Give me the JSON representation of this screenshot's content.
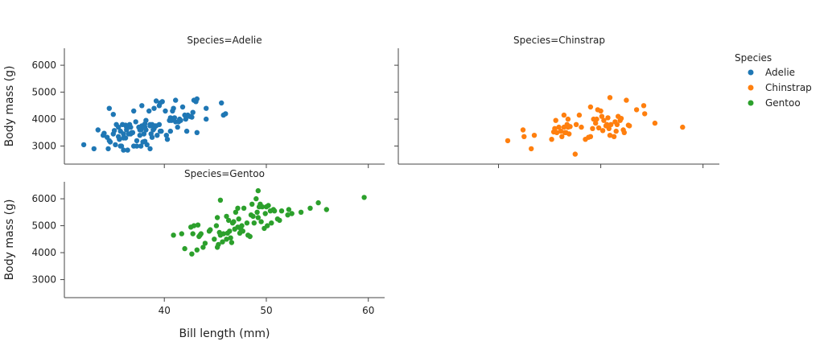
{
  "chart_data": {
    "type": "scatter",
    "xlabel": "Bill length (mm)",
    "ylabel": "Body mass (g)",
    "xlim": [
      30.2,
      61.6
    ],
    "ylim": [
      2330,
      6630
    ],
    "xticks": [
      40,
      50,
      60
    ],
    "yticks": [
      3000,
      4000,
      5000,
      6000
    ],
    "legend": {
      "title": "Species",
      "placement": "right"
    },
    "series": [
      {
        "name": "Adelie",
        "panel_title": "Species=Adelie",
        "color": "#1f77b4",
        "points": [
          [
            32.1,
            3050
          ],
          [
            33.1,
            2900
          ],
          [
            33.5,
            3600
          ],
          [
            34.0,
            3400
          ],
          [
            34.1,
            3475
          ],
          [
            34.4,
            3325
          ],
          [
            34.5,
            2900
          ],
          [
            34.6,
            3200
          ],
          [
            34.6,
            4400
          ],
          [
            34.7,
            3150
          ],
          [
            35.0,
            3450
          ],
          [
            35.0,
            4175
          ],
          [
            35.1,
            3575
          ],
          [
            35.2,
            3050
          ],
          [
            35.3,
            3800
          ],
          [
            35.5,
            3700
          ],
          [
            35.5,
            3350
          ],
          [
            35.6,
            3250
          ],
          [
            35.7,
            3000
          ],
          [
            35.7,
            3550
          ],
          [
            35.8,
            3000
          ],
          [
            35.9,
            3800
          ],
          [
            36.0,
            3450
          ],
          [
            36.0,
            2850
          ],
          [
            36.0,
            3300
          ],
          [
            36.2,
            3775
          ],
          [
            36.2,
            3300
          ],
          [
            36.3,
            3700
          ],
          [
            36.3,
            3600
          ],
          [
            36.4,
            2850
          ],
          [
            36.5,
            3450
          ],
          [
            36.6,
            3800
          ],
          [
            36.7,
            3450
          ],
          [
            36.7,
            3700
          ],
          [
            36.8,
            3500
          ],
          [
            36.9,
            3500
          ],
          [
            37.0,
            3000
          ],
          [
            37.0,
            4300
          ],
          [
            37.2,
            3900
          ],
          [
            37.3,
            3200
          ],
          [
            37.3,
            3000
          ],
          [
            37.5,
            3700
          ],
          [
            37.6,
            3400
          ],
          [
            37.6,
            3600
          ],
          [
            37.7,
            3600
          ],
          [
            37.7,
            3000
          ],
          [
            37.8,
            3700
          ],
          [
            37.8,
            3750
          ],
          [
            37.8,
            4500
          ],
          [
            37.9,
            3150
          ],
          [
            38.0,
            3450
          ],
          [
            38.1,
            3825
          ],
          [
            38.1,
            3175
          ],
          [
            38.1,
            3700
          ],
          [
            38.2,
            3950
          ],
          [
            38.2,
            3600
          ],
          [
            38.3,
            3050
          ],
          [
            38.5,
            4300
          ],
          [
            38.6,
            3800
          ],
          [
            38.6,
            2900
          ],
          [
            38.6,
            3750
          ],
          [
            38.7,
            3450
          ],
          [
            38.8,
            3800
          ],
          [
            38.8,
            3325
          ],
          [
            38.9,
            3600
          ],
          [
            39.0,
            3650
          ],
          [
            39.0,
            4400
          ],
          [
            39.1,
            3750
          ],
          [
            39.2,
            4675
          ],
          [
            39.2,
            3750
          ],
          [
            39.3,
            3400
          ],
          [
            39.5,
            4500
          ],
          [
            39.5,
            3800
          ],
          [
            39.6,
            4600
          ],
          [
            39.6,
            3550
          ],
          [
            39.7,
            3550
          ],
          [
            39.8,
            4650
          ],
          [
            40.1,
            4300
          ],
          [
            40.2,
            3400
          ],
          [
            40.3,
            3250
          ],
          [
            40.5,
            3950
          ],
          [
            40.6,
            3550
          ],
          [
            40.6,
            4050
          ],
          [
            40.7,
            3950
          ],
          [
            40.8,
            4300
          ],
          [
            40.9,
            4400
          ],
          [
            41.0,
            4050
          ],
          [
            41.1,
            4700
          ],
          [
            41.1,
            3900
          ],
          [
            41.3,
            3700
          ],
          [
            41.4,
            3900
          ],
          [
            41.5,
            4000
          ],
          [
            41.6,
            3950
          ],
          [
            41.8,
            4450
          ],
          [
            42.0,
            4150
          ],
          [
            42.1,
            4000
          ],
          [
            42.2,
            3550
          ],
          [
            42.3,
            4150
          ],
          [
            42.5,
            4100
          ],
          [
            42.7,
            4075
          ],
          [
            42.8,
            4250
          ],
          [
            42.9,
            4700
          ],
          [
            43.1,
            4650
          ],
          [
            43.2,
            4750
          ],
          [
            43.2,
            3500
          ],
          [
            44.1,
            4000
          ],
          [
            44.1,
            4400
          ],
          [
            45.6,
            4600
          ],
          [
            45.8,
            4150
          ],
          [
            46.0,
            4200
          ]
        ]
      },
      {
        "name": "Chinstrap",
        "panel_title": "Species=Chinstrap",
        "color": "#ff7f0e",
        "points": [
          [
            40.9,
            3200
          ],
          [
            42.4,
            3600
          ],
          [
            42.5,
            3350
          ],
          [
            43.2,
            2900
          ],
          [
            43.5,
            3400
          ],
          [
            45.2,
            3250
          ],
          [
            45.4,
            3525
          ],
          [
            45.5,
            3650
          ],
          [
            45.6,
            3950
          ],
          [
            45.7,
            3500
          ],
          [
            45.9,
            3700
          ],
          [
            46.1,
            3550
          ],
          [
            46.2,
            3350
          ],
          [
            46.4,
            3700
          ],
          [
            46.4,
            4150
          ],
          [
            46.5,
            3500
          ],
          [
            46.6,
            3500
          ],
          [
            46.7,
            3800
          ],
          [
            46.8,
            3700
          ],
          [
            46.9,
            3450
          ],
          [
            47.0,
            3725
          ],
          [
            47.5,
            2700
          ],
          [
            47.6,
            3800
          ],
          [
            48.1,
            3700
          ],
          [
            48.5,
            3250
          ],
          [
            49.0,
            3350
          ],
          [
            49.2,
            3650
          ],
          [
            49.3,
            4000
          ],
          [
            49.5,
            3850
          ],
          [
            49.6,
            4000
          ],
          [
            49.7,
            4350
          ],
          [
            50.0,
            4300
          ],
          [
            50.1,
            4100
          ],
          [
            50.2,
            3575
          ],
          [
            50.3,
            3950
          ],
          [
            50.5,
            3750
          ],
          [
            50.6,
            3800
          ],
          [
            50.7,
            4050
          ],
          [
            50.8,
            3650
          ],
          [
            50.9,
            3400
          ],
          [
            51.0,
            3800
          ],
          [
            51.3,
            3350
          ],
          [
            51.4,
            3900
          ],
          [
            51.5,
            3550
          ],
          [
            51.7,
            4100
          ],
          [
            51.9,
            3950
          ],
          [
            52.0,
            4025
          ],
          [
            52.2,
            3600
          ],
          [
            52.5,
            4700
          ],
          [
            52.7,
            3775
          ],
          [
            52.8,
            3750
          ],
          [
            53.5,
            4350
          ],
          [
            54.2,
            4500
          ],
          [
            54.3,
            4200
          ],
          [
            55.3,
            3850
          ],
          [
            58.0,
            3700
          ],
          [
            52.3,
            3500
          ],
          [
            48.8,
            3325
          ],
          [
            51.6,
            3800
          ],
          [
            49.8,
            3675
          ],
          [
            46.8,
            4000
          ],
          [
            47.9,
            4150
          ],
          [
            50.9,
            4800
          ],
          [
            49.0,
            4450
          ]
        ]
      },
      {
        "name": "Gentoo",
        "panel_title": "Species=Gentoo",
        "color": "#2ca02c",
        "points": [
          [
            40.9,
            4650
          ],
          [
            41.7,
            4700
          ],
          [
            42.0,
            4150
          ],
          [
            42.6,
            4950
          ],
          [
            42.7,
            3950
          ],
          [
            42.8,
            4700
          ],
          [
            42.9,
            5000
          ],
          [
            43.2,
            4100
          ],
          [
            43.3,
            5025
          ],
          [
            43.4,
            4600
          ],
          [
            43.5,
            4650
          ],
          [
            43.6,
            4700
          ],
          [
            43.8,
            4200
          ],
          [
            44.0,
            4350
          ],
          [
            44.4,
            4800
          ],
          [
            44.5,
            4850
          ],
          [
            44.9,
            4500
          ],
          [
            45.1,
            5000
          ],
          [
            45.2,
            5300
          ],
          [
            45.3,
            4300
          ],
          [
            45.4,
            4750
          ],
          [
            45.5,
            4650
          ],
          [
            45.5,
            5950
          ],
          [
            45.7,
            4400
          ],
          [
            45.8,
            4700
          ],
          [
            46.1,
            4500
          ],
          [
            46.2,
            4725
          ],
          [
            46.3,
            5200
          ],
          [
            46.4,
            4800
          ],
          [
            46.5,
            4550
          ],
          [
            46.6,
            4375
          ],
          [
            46.7,
            5100
          ],
          [
            46.8,
            5150
          ],
          [
            46.9,
            4875
          ],
          [
            47.0,
            5500
          ],
          [
            47.2,
            4950
          ],
          [
            47.3,
            5250
          ],
          [
            47.4,
            4725
          ],
          [
            47.5,
            4875
          ],
          [
            47.6,
            5000
          ],
          [
            47.7,
            4800
          ],
          [
            47.8,
            5650
          ],
          [
            48.1,
            5100
          ],
          [
            48.2,
            4650
          ],
          [
            48.4,
            4600
          ],
          [
            48.5,
            5400
          ],
          [
            48.6,
            5800
          ],
          [
            48.7,
            5350
          ],
          [
            48.8,
            5100
          ],
          [
            49.0,
            6000
          ],
          [
            49.1,
            5500
          ],
          [
            49.2,
            5300
          ],
          [
            49.3,
            5700
          ],
          [
            49.4,
            5800
          ],
          [
            49.5,
            5150
          ],
          [
            49.6,
            5700
          ],
          [
            49.8,
            4900
          ],
          [
            49.9,
            5450
          ],
          [
            50.0,
            5700
          ],
          [
            50.1,
            5000
          ],
          [
            50.2,
            5750
          ],
          [
            50.4,
            5550
          ],
          [
            50.5,
            5100
          ],
          [
            50.7,
            5600
          ],
          [
            50.8,
            5550
          ],
          [
            51.1,
            5250
          ],
          [
            51.3,
            5200
          ],
          [
            51.5,
            5550
          ],
          [
            52.1,
            5400
          ],
          [
            52.2,
            5600
          ],
          [
            52.5,
            5450
          ],
          [
            53.4,
            5500
          ],
          [
            54.3,
            5650
          ],
          [
            55.1,
            5850
          ],
          [
            55.9,
            5600
          ],
          [
            59.6,
            6050
          ],
          [
            49.2,
            6300
          ],
          [
            46.1,
            5350
          ],
          [
            45.2,
            4200
          ],
          [
            47.2,
            5650
          ]
        ]
      }
    ]
  }
}
